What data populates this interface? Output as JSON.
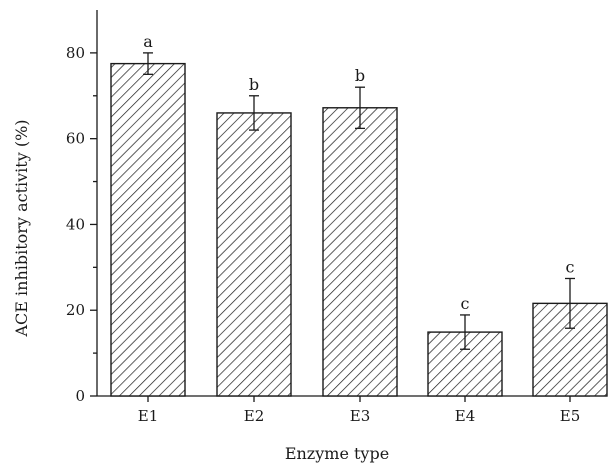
{
  "chart_data": {
    "type": "bar",
    "title": "",
    "xlabel": "Enzyme type",
    "ylabel": "ACE inhibitory activity (%)",
    "categories": [
      "E1",
      "E2",
      "E3",
      "E4",
      "E5"
    ],
    "values": [
      77.5,
      66.0,
      67.2,
      14.9,
      21.6
    ],
    "errors": [
      2.5,
      4.0,
      4.8,
      4.0,
      5.8
    ],
    "significance": [
      "a",
      "b",
      "b",
      "c",
      "c"
    ],
    "ylim": [
      0,
      90
    ],
    "yticks": [
      0,
      20,
      40,
      60,
      80
    ],
    "grid": false,
    "bar_fill": "diagonal-hatch",
    "colors": {
      "ink": "#1a1a1a",
      "background": "#ffffff"
    }
  }
}
